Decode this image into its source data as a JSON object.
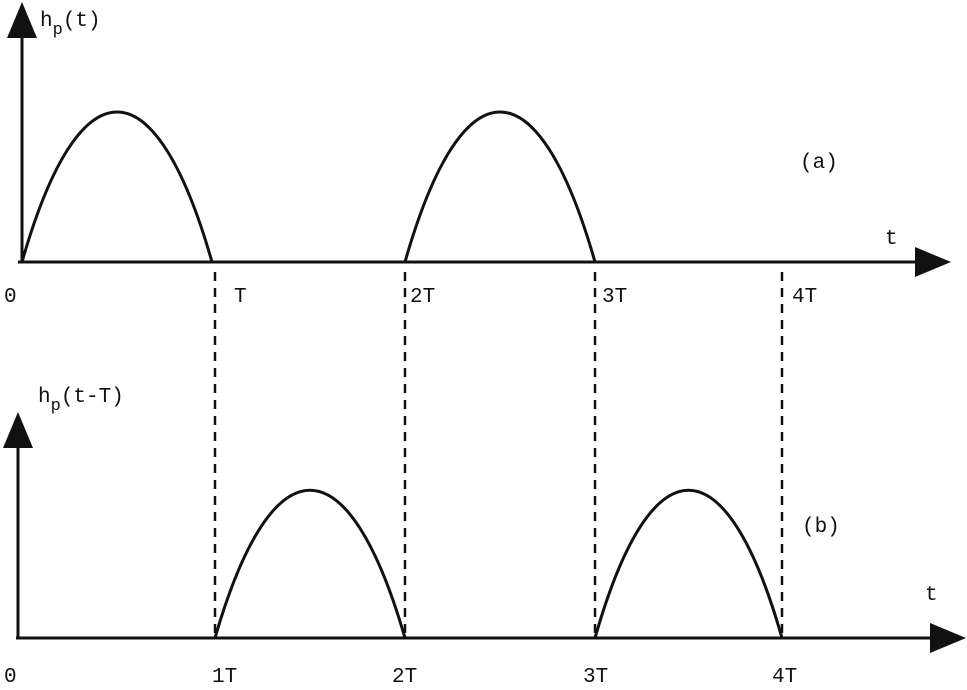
{
  "panel_a": {
    "y_label": {
      "base": "h",
      "sub": "p",
      "arg": "(t)"
    },
    "x_label": "t",
    "caption": "(a)",
    "ticks": [
      "0",
      "T",
      "2T",
      "3T",
      "4T"
    ]
  },
  "panel_b": {
    "y_label": {
      "base": "h",
      "sub": "p",
      "arg": "(t-T)"
    },
    "x_label": "t",
    "caption": "(b)",
    "ticks": [
      "0",
      "1T",
      "2T",
      "3T",
      "4T"
    ]
  }
}
